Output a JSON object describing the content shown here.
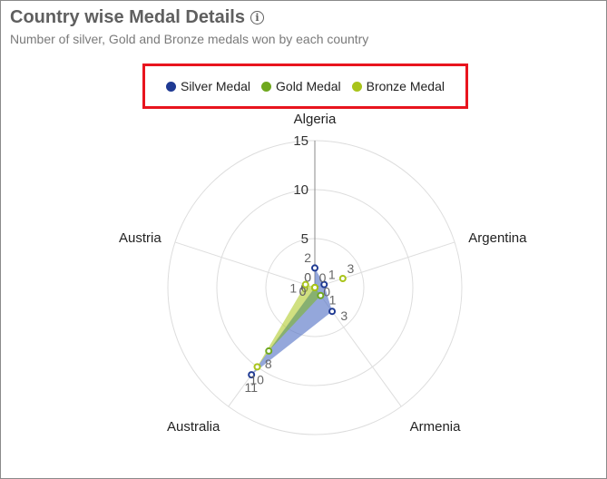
{
  "header": {
    "title": "Country wise Medal Details",
    "subtitle": "Number of silver, Gold and Bronze medals won by each country"
  },
  "chart_data": {
    "type": "radar",
    "title": "Country wise Medal Details",
    "subtitle": "Number of silver, Gold and Bronze medals won by each country",
    "categories": [
      "Algeria",
      "Argentina",
      "Armenia",
      "Australia",
      "Austria"
    ],
    "radial_ticks": [
      "0",
      "5",
      "10",
      "15"
    ],
    "rlim": [
      0,
      15
    ],
    "legend_position": "top",
    "series": [
      {
        "name": "Silver Medal",
        "color": "#1f3a93",
        "fill": "#5a78c8",
        "values": [
          2,
          1,
          3,
          11,
          0
        ],
        "labels": [
          "2",
          "1",
          "3",
          "11",
          "0"
        ]
      },
      {
        "name": "Gold Medal",
        "color": "#6fa81e",
        "fill": "#7fb539",
        "values": [
          0,
          0,
          1,
          8,
          0
        ],
        "labels": [
          "0",
          "0",
          "1",
          "8",
          "0"
        ]
      },
      {
        "name": "Bronze Medal",
        "color": "#a9c41a",
        "fill": "#b7cf3c",
        "values": [
          0,
          3,
          0,
          10,
          1
        ],
        "labels": [
          "0",
          "3",
          "0",
          "10",
          "1"
        ]
      }
    ]
  }
}
